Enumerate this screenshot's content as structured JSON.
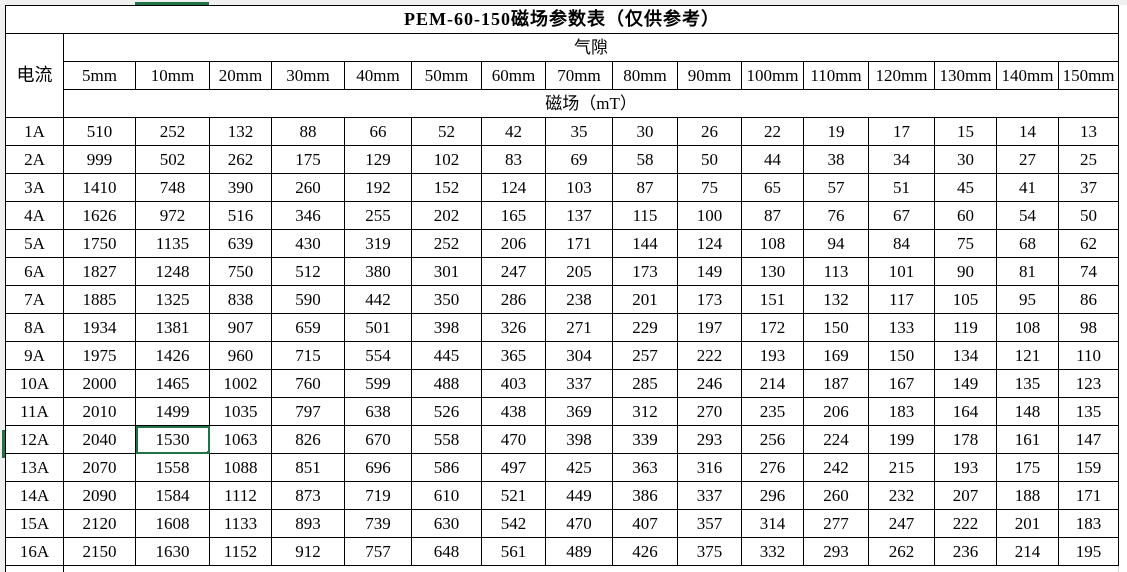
{
  "title": "PEM-60-150磁场参数表（仅供参考）",
  "current_label": "电流",
  "gap_label": "气隙",
  "field_label": "磁场（mT）",
  "gaps": [
    "5mm",
    "10mm",
    "20mm",
    "30mm",
    "40mm",
    "50mm",
    "60mm",
    "70mm",
    "80mm",
    "90mm",
    "100mm",
    "110mm",
    "120mm",
    "130mm",
    "140mm",
    "150mm"
  ],
  "rows": [
    {
      "current": "1A",
      "values": [
        510,
        252,
        132,
        88,
        66,
        52,
        42,
        35,
        30,
        26,
        22,
        19,
        17,
        15,
        14,
        13
      ]
    },
    {
      "current": "2A",
      "values": [
        999,
        502,
        262,
        175,
        129,
        102,
        83,
        69,
        58,
        50,
        44,
        38,
        34,
        30,
        27,
        25
      ]
    },
    {
      "current": "3A",
      "values": [
        1410,
        748,
        390,
        260,
        192,
        152,
        124,
        103,
        87,
        75,
        65,
        57,
        51,
        45,
        41,
        37
      ]
    },
    {
      "current": "4A",
      "values": [
        1626,
        972,
        516,
        346,
        255,
        202,
        165,
        137,
        115,
        100,
        87,
        76,
        67,
        60,
        54,
        50
      ]
    },
    {
      "current": "5A",
      "values": [
        1750,
        1135,
        639,
        430,
        319,
        252,
        206,
        171,
        144,
        124,
        108,
        94,
        84,
        75,
        68,
        62
      ]
    },
    {
      "current": "6A",
      "values": [
        1827,
        1248,
        750,
        512,
        380,
        301,
        247,
        205,
        173,
        149,
        130,
        113,
        101,
        90,
        81,
        74
      ]
    },
    {
      "current": "7A",
      "values": [
        1885,
        1325,
        838,
        590,
        442,
        350,
        286,
        238,
        201,
        173,
        151,
        132,
        117,
        105,
        95,
        86
      ]
    },
    {
      "current": "8A",
      "values": [
        1934,
        1381,
        907,
        659,
        501,
        398,
        326,
        271,
        229,
        197,
        172,
        150,
        133,
        119,
        108,
        98
      ]
    },
    {
      "current": "9A",
      "values": [
        1975,
        1426,
        960,
        715,
        554,
        445,
        365,
        304,
        257,
        222,
        193,
        169,
        150,
        134,
        121,
        110
      ]
    },
    {
      "current": "10A",
      "values": [
        2000,
        1465,
        1002,
        760,
        599,
        488,
        403,
        337,
        285,
        246,
        214,
        187,
        167,
        149,
        135,
        123
      ]
    },
    {
      "current": "11A",
      "values": [
        2010,
        1499,
        1035,
        797,
        638,
        526,
        438,
        369,
        312,
        270,
        235,
        206,
        183,
        164,
        148,
        135
      ]
    },
    {
      "current": "12A",
      "values": [
        2040,
        1530,
        1063,
        826,
        670,
        558,
        470,
        398,
        339,
        293,
        256,
        224,
        199,
        178,
        161,
        147
      ]
    },
    {
      "current": "13A",
      "values": [
        2070,
        1558,
        1088,
        851,
        696,
        586,
        497,
        425,
        363,
        316,
        276,
        242,
        215,
        193,
        175,
        159
      ]
    },
    {
      "current": "14A",
      "values": [
        2090,
        1584,
        1112,
        873,
        719,
        610,
        521,
        449,
        386,
        337,
        296,
        260,
        232,
        207,
        188,
        171
      ]
    },
    {
      "current": "15A",
      "values": [
        2120,
        1608,
        1133,
        893,
        739,
        630,
        542,
        470,
        407,
        357,
        314,
        277,
        247,
        222,
        201,
        183
      ]
    },
    {
      "current": "16A",
      "values": [
        2150,
        1630,
        1152,
        912,
        757,
        648,
        561,
        489,
        426,
        375,
        332,
        293,
        262,
        236,
        214,
        195
      ]
    }
  ],
  "selected_cell": {
    "row": "12A",
    "gap": "10mm"
  },
  "accent_color": "#217346"
}
